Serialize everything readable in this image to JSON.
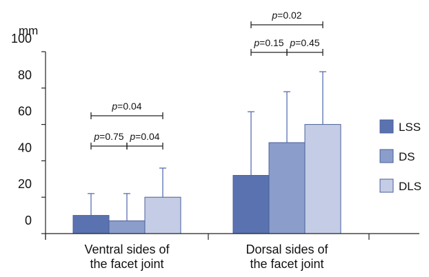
{
  "chart_data": {
    "type": "bar",
    "ylabel": "mm",
    "ylim": [
      0,
      100
    ],
    "yticks": [
      "0",
      "20",
      "40",
      "60",
      "80",
      "100"
    ],
    "categories": [
      [
        "Ventral sides of",
        "the facet joint"
      ],
      [
        "Dorsal sides of",
        "the facet joint"
      ]
    ],
    "series": [
      {
        "name": "LSS",
        "color": "#5a72b0",
        "values": [
          10,
          32
        ],
        "errors": [
          12,
          35
        ]
      },
      {
        "name": "DS",
        "color": "#8b9dcb",
        "values": [
          7,
          50
        ],
        "errors": [
          15,
          28
        ]
      },
      {
        "name": "DLS",
        "color": "#c5cde6",
        "values": [
          20,
          60
        ],
        "errors": [
          16,
          29
        ]
      }
    ],
    "legend_position": "right",
    "comparisons": [
      {
        "category": 0,
        "from": 0,
        "to": 1,
        "p_label": "p",
        "p_value": "=0.75",
        "level": 0
      },
      {
        "category": 0,
        "from": 1,
        "to": 2,
        "p_label": "p",
        "p_value": "=0.04",
        "level": 0
      },
      {
        "category": 0,
        "from": 0,
        "to": 2,
        "p_label": "p",
        "p_value": "=0.04",
        "level": 1
      },
      {
        "category": 1,
        "from": 0,
        "to": 1,
        "p_label": "p",
        "p_value": "=0.15",
        "level": 0
      },
      {
        "category": 1,
        "from": 1,
        "to": 2,
        "p_label": "p",
        "p_value": "=0.45",
        "level": 0
      },
      {
        "category": 1,
        "from": 0,
        "to": 2,
        "p_label": "p",
        "p_value": "=0.02",
        "level": 1
      }
    ]
  }
}
